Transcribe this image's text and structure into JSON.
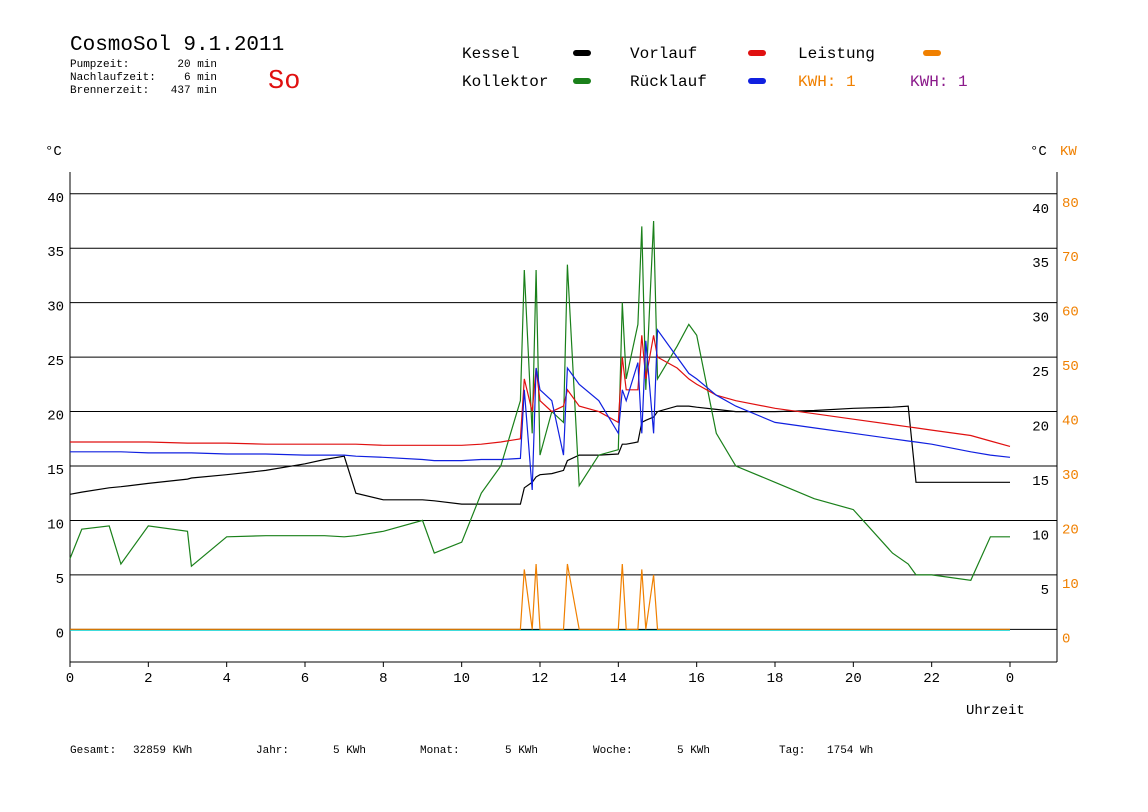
{
  "chart_data": {
    "type": "line",
    "title": "CosmoSol 9.1.2011",
    "status": "So",
    "stats": [
      {
        "label": "Pumpzeit:",
        "value": "20 min"
      },
      {
        "label": "Nachlaufzeit:",
        "value": "6 min"
      },
      {
        "label": "Brennerzeit:",
        "value": "437 min"
      }
    ],
    "kwh_labels": [
      {
        "text": "KWH: 1",
        "color": "#f08000"
      },
      {
        "text": "KWH: 1",
        "color": "#8b1a8b"
      }
    ],
    "ylabel": "°C",
    "y2label_celsius": "°C",
    "y2label": "KW",
    "xlabel": "Uhrzeit",
    "totals": [
      {
        "label": "Gesamt:",
        "value": "32859 KWh"
      },
      {
        "label": "Jahr:",
        "value": "5 KWh"
      },
      {
        "label": "Monat:",
        "value": "5 KWh"
      },
      {
        "label": "Woche:",
        "value": "5 KWh"
      },
      {
        "label": "Tag:",
        "value": "1754 Wh"
      }
    ],
    "xlim": [
      0,
      25.2
    ],
    "xticks": [
      0,
      2,
      4,
      6,
      8,
      10,
      12,
      14,
      16,
      18,
      20,
      22,
      {
        "value": 24,
        "label": "0"
      }
    ],
    "ylim": [
      -3,
      42
    ],
    "yticks": [
      0,
      5,
      10,
      15,
      20,
      25,
      30,
      35,
      40
    ],
    "yticks_right": [
      5,
      10,
      15,
      20,
      25,
      30,
      35,
      40
    ],
    "y2lim": [
      -6,
      84
    ],
    "y2ticks": [
      0,
      10,
      20,
      30,
      40,
      50,
      60,
      70,
      80
    ],
    "y2color": "#f08000",
    "grid": true,
    "x": [
      0,
      0.3,
      1,
      1.3,
      2,
      3,
      3.1,
      4,
      5,
      6,
      6.5,
      7,
      7.3,
      8,
      9,
      9.3,
      10,
      10.5,
      11,
      11.5,
      11.6,
      11.8,
      11.9,
      12,
      12.3,
      12.6,
      12.7,
      13,
      13.5,
      14,
      14.1,
      14.2,
      14.5,
      14.6,
      14.7,
      14.9,
      15,
      15.5,
      15.8,
      16,
      16.5,
      17,
      18,
      19,
      20,
      21,
      21.4,
      21.6,
      22,
      23,
      23.5,
      24
    ],
    "series": [
      {
        "name": "Kessel",
        "color": "#000000",
        "values": [
          12.4,
          12.6,
          13,
          13.1,
          13.4,
          13.8,
          13.9,
          14.2,
          14.6,
          15.2,
          15.6,
          15.9,
          12.5,
          11.9,
          11.9,
          11.8,
          11.5,
          11.5,
          11.5,
          11.5,
          13,
          13.5,
          14,
          14.2,
          14.3,
          14.6,
          15.5,
          16,
          16,
          16.1,
          17,
          17,
          17.2,
          19,
          19.2,
          19.5,
          20,
          20.5,
          20.5,
          20.4,
          20.2,
          20,
          20,
          20.1,
          20.3,
          20.4,
          20.5,
          13.5,
          13.5,
          13.5,
          13.5,
          13.5
        ]
      },
      {
        "name": "Kollektor",
        "color": "#1a801a",
        "values": [
          6.5,
          9.2,
          9.5,
          6,
          9.5,
          9,
          5.8,
          8.5,
          8.6,
          8.6,
          8.6,
          8.5,
          8.6,
          9,
          10,
          7,
          8,
          12.5,
          15,
          21,
          33,
          18,
          33,
          16,
          20,
          19,
          33.5,
          13.2,
          16,
          16.5,
          30,
          23,
          28,
          37,
          22,
          37.5,
          23,
          26,
          28,
          27,
          18,
          15,
          13.5,
          12,
          11,
          7,
          6,
          5,
          5,
          4.5,
          8.5,
          8.5
        ]
      },
      {
        "name": "Vorlauf",
        "color": "#e01010",
        "values": [
          17.2,
          17.2,
          17.2,
          17.2,
          17.2,
          17.1,
          17.1,
          17.1,
          17,
          17,
          17,
          17,
          17,
          16.9,
          16.9,
          16.9,
          16.9,
          17,
          17.2,
          17.5,
          23,
          20,
          24,
          21,
          20,
          20.5,
          22,
          20.5,
          20,
          19,
          25,
          22,
          22,
          27,
          23,
          27,
          25,
          24,
          23,
          22.5,
          21.5,
          21,
          20.3,
          19.8,
          19.3,
          18.8,
          18.6,
          18.5,
          18.3,
          17.8,
          17.3,
          16.8
        ]
      },
      {
        "name": "Rücklauf",
        "color": "#1020e0",
        "values": [
          16.3,
          16.3,
          16.3,
          16.3,
          16.2,
          16.2,
          16.2,
          16.1,
          16.1,
          16,
          16,
          16,
          15.9,
          15.8,
          15.6,
          15.5,
          15.5,
          15.6,
          15.6,
          15.7,
          22,
          12.8,
          24,
          22,
          21,
          16,
          24,
          22.5,
          21,
          18,
          22,
          21,
          24.5,
          18,
          26.5,
          18,
          27.5,
          25,
          23.5,
          23,
          21.5,
          20.5,
          19,
          18.5,
          18,
          17.5,
          17.3,
          17.2,
          17,
          16.3,
          16,
          15.8
        ]
      },
      {
        "name": "Leistung",
        "color": "#f08000",
        "axis": "y2",
        "values": [
          0,
          0,
          0,
          0,
          0,
          0,
          0,
          0,
          0,
          0,
          0,
          0,
          0,
          0,
          0,
          0,
          0,
          0,
          0,
          0,
          11,
          0,
          12,
          0,
          0,
          0,
          12,
          0,
          0,
          0,
          12,
          0,
          0,
          11,
          0,
          10,
          0,
          0,
          0,
          0,
          0,
          0,
          0,
          0,
          0,
          0,
          0,
          0,
          0,
          0,
          0,
          0
        ]
      }
    ]
  }
}
